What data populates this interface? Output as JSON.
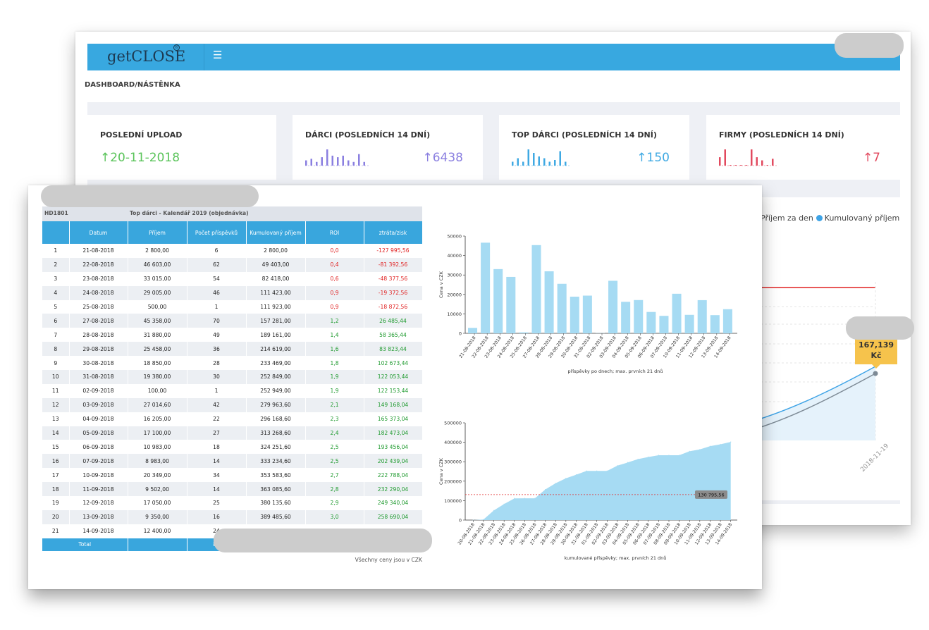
{
  "app": {
    "brand": "getCLOSE",
    "brand_mark": "®",
    "menu_icon": "hamburger-icon",
    "breadcrumb": "DASHBOARD/NÁSTĚNKA"
  },
  "cards": [
    {
      "title": "POSLEDNÍ UPLOAD",
      "value": "↑20-11-2018",
      "color": "#5bc45b"
    },
    {
      "title": "DÁRCI (POSLEDNÍCH 14 DNÍ)",
      "value": "↑6438",
      "color": "#8a7fe0",
      "spark": [
        2,
        3,
        1,
        4,
        9,
        5,
        4,
        5,
        2,
        1,
        6,
        1
      ]
    },
    {
      "title": "TOP DÁRCI (POSLEDNÍCH 14 DNÍ)",
      "value": "↑150",
      "color": "#3fa9e3",
      "spark": [
        1,
        3,
        1,
        8,
        6,
        4,
        3,
        1,
        2,
        7,
        1
      ]
    },
    {
      "title": "FIRMY (POSLEDNÍCH 14 DNÍ)",
      "value": "↑7",
      "color": "#e24a5f",
      "spark": [
        4,
        9,
        0,
        0,
        0,
        0,
        9,
        4,
        2,
        0,
        3
      ]
    }
  ],
  "legend": {
    "first": "Příjem za den",
    "second": "Kumulovaný příjem"
  },
  "tooltip": {
    "line1": "167,139",
    "line2": "Kč"
  },
  "date_tick": "2018-11-19",
  "sheet": {
    "code": "HD1801",
    "title": "Top dárci - Kalendář 2019 (objednávka)",
    "columns": [
      "",
      "Datum",
      "Příjem",
      "Počet příspěvků",
      "Kumulovaný příjem",
      "ROI",
      "ztráta/zisk"
    ],
    "rows": [
      [
        "1",
        "21-08-2018",
        "2 800,00",
        "6",
        "2 800,00",
        "0,0",
        "-127 995,56"
      ],
      [
        "2",
        "22-08-2018",
        "46 603,00",
        "62",
        "49 403,00",
        "0,4",
        "-81 392,56"
      ],
      [
        "3",
        "23-08-2018",
        "33 015,00",
        "54",
        "82 418,00",
        "0,6",
        "-48 377,56"
      ],
      [
        "4",
        "24-08-2018",
        "29 005,00",
        "46",
        "111 423,00",
        "0,9",
        "-19 372,56"
      ],
      [
        "5",
        "25-08-2018",
        "500,00",
        "1",
        "111 923,00",
        "0,9",
        "-18 872,56"
      ],
      [
        "6",
        "27-08-2018",
        "45 358,00",
        "70",
        "157 281,00",
        "1,2",
        "26 485,44"
      ],
      [
        "7",
        "28-08-2018",
        "31 880,00",
        "49",
        "189 161,00",
        "1,4",
        "58 365,44"
      ],
      [
        "8",
        "29-08-2018",
        "25 458,00",
        "36",
        "214 619,00",
        "1,6",
        "83 823,44"
      ],
      [
        "9",
        "30-08-2018",
        "18 850,00",
        "28",
        "233 469,00",
        "1,8",
        "102 673,44"
      ],
      [
        "10",
        "31-08-2018",
        "19 380,00",
        "30",
        "252 849,00",
        "1,9",
        "122 053,44"
      ],
      [
        "11",
        "02-09-2018",
        "100,00",
        "1",
        "252 949,00",
        "1,9",
        "122 153,44"
      ],
      [
        "12",
        "03-09-2018",
        "27 014,60",
        "42",
        "279 963,60",
        "2,1",
        "149 168,04"
      ],
      [
        "13",
        "04-09-2018",
        "16 205,00",
        "22",
        "296 168,60",
        "2,3",
        "165 373,04"
      ],
      [
        "14",
        "05-09-2018",
        "17 100,00",
        "27",
        "313 268,60",
        "2,4",
        "182 473,04"
      ],
      [
        "15",
        "06-09-2018",
        "10 983,00",
        "18",
        "324 251,60",
        "2,5",
        "193 456,04"
      ],
      [
        "16",
        "07-09-2018",
        "8 983,00",
        "14",
        "333 234,60",
        "2,5",
        "202 439,04"
      ],
      [
        "17",
        "10-09-2018",
        "20 349,00",
        "34",
        "353 583,60",
        "2,7",
        "222 788,04"
      ],
      [
        "18",
        "11-09-2018",
        "9 502,00",
        "14",
        "363 085,60",
        "2,8",
        "232 290,04"
      ],
      [
        "19",
        "12-09-2018",
        "17 050,00",
        "25",
        "380 135,60",
        "2,9",
        "249 340,04"
      ],
      [
        "20",
        "13-09-2018",
        "9 350,00",
        "16",
        "389 485,60",
        "3,0",
        "258 690,04"
      ],
      [
        "21",
        "14-09-2018",
        "12 400,00",
        "24",
        "",
        "",
        ""
      ]
    ],
    "total_label": "Total",
    "total_partial": "84",
    "note": "Všechny ceny jsou v CZK"
  },
  "chart_data": [
    {
      "type": "bar",
      "xlabel": "příspěvky po dnech; max. prvních 21 dnů",
      "ylabel": "Cena v CZK",
      "ylim": [
        0,
        50000
      ],
      "yticks": [
        "0",
        "10000",
        "20000",
        "30000",
        "40000",
        "50000"
      ],
      "categories": [
        "21-08-2018",
        "22-08-2018",
        "23-08-2018",
        "24-08-2018",
        "25-08-2018",
        "27-08-2018",
        "28-08-2018",
        "29-08-2018",
        "30-08-2018",
        "31-08-2018",
        "02-09-2018",
        "03-09-2018",
        "04-09-2018",
        "05-09-2018",
        "06-09-2018",
        "07-09-2018",
        "10-09-2018",
        "11-09-2018",
        "12-09-2018",
        "13-09-2018",
        "14-09-2018"
      ],
      "values": [
        2800,
        46603,
        33015,
        29005,
        500,
        45358,
        31880,
        25458,
        18850,
        19380,
        100,
        27015,
        16205,
        17100,
        10983,
        8983,
        20349,
        9502,
        17050,
        9350,
        12400
      ],
      "color": "#a6dbf3"
    },
    {
      "type": "area",
      "xlabel": "kumulované příspěvky; max. prvních 21 dnů",
      "ylabel": "Cena v CZK",
      "ylim": [
        0,
        500000
      ],
      "yticks": [
        "0",
        "100000",
        "200000",
        "300000",
        "400000",
        "500000"
      ],
      "categories": [
        "20-08-2018",
        "21-08-2018",
        "22-08-2018",
        "23-08-2018",
        "24-08-2018",
        "25-08-2018",
        "26-08-2018",
        "27-08-2018",
        "28-08-2018",
        "29-08-2018",
        "30-08-2018",
        "31-08-2018",
        "01-09-2018",
        "02-09-2018",
        "03-09-2018",
        "04-09-2018",
        "05-09-2018",
        "06-09-2018",
        "07-09-2018",
        "08-09-2018",
        "09-09-2018",
        "10-09-2018",
        "11-09-2018",
        "12-09-2018",
        "13-09-2018",
        "14-09-2018"
      ],
      "values": [
        0,
        2800,
        49403,
        82418,
        111423,
        111923,
        111923,
        157281,
        189161,
        214619,
        233469,
        252849,
        252849,
        252949,
        279964,
        296169,
        313269,
        324252,
        333235,
        333235,
        333235,
        353584,
        363086,
        380136,
        389486,
        401886
      ],
      "threshold": 130796,
      "threshold_label": "130 795,56",
      "color": "#a6dbf3"
    }
  ]
}
